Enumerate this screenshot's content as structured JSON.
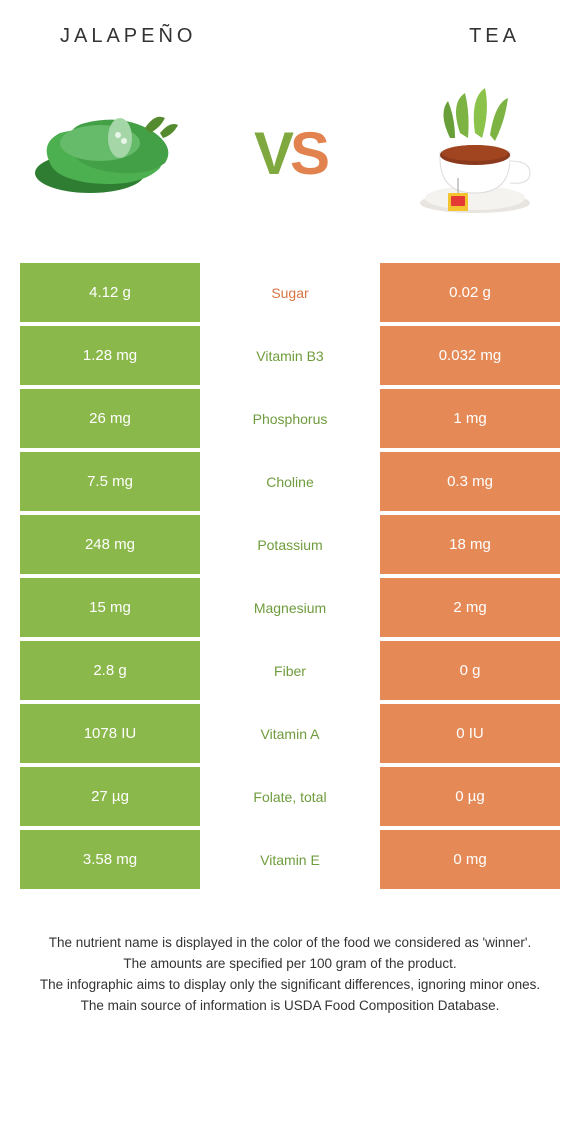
{
  "header": {
    "left": "JALAPEÑO",
    "right": "TEA"
  },
  "vs": {
    "v": "V",
    "s": "S"
  },
  "colors": {
    "green_bg": "#8bb84a",
    "orange_bg": "#e58a57",
    "green_text": "#6f9c3c",
    "orange_text": "#d97543"
  },
  "rows": [
    {
      "left": "4.12 g",
      "label": "Sugar",
      "right": "0.02 g",
      "winner": "orange"
    },
    {
      "left": "1.28 mg",
      "label": "Vitamin B3",
      "right": "0.032 mg",
      "winner": "green"
    },
    {
      "left": "26 mg",
      "label": "Phosphorus",
      "right": "1 mg",
      "winner": "green"
    },
    {
      "left": "7.5 mg",
      "label": "Choline",
      "right": "0.3 mg",
      "winner": "green"
    },
    {
      "left": "248 mg",
      "label": "Potassium",
      "right": "18 mg",
      "winner": "green"
    },
    {
      "left": "15 mg",
      "label": "Magnesium",
      "right": "2 mg",
      "winner": "green"
    },
    {
      "left": "2.8 g",
      "label": "Fiber",
      "right": "0 g",
      "winner": "green"
    },
    {
      "left": "1078 IU",
      "label": "Vitamin A",
      "right": "0 IU",
      "winner": "green"
    },
    {
      "left": "27 µg",
      "label": "Folate, total",
      "right": "0 µg",
      "winner": "green"
    },
    {
      "left": "3.58 mg",
      "label": "Vitamin E",
      "right": "0 mg",
      "winner": "green"
    }
  ],
  "footer": {
    "line1": "The nutrient name is displayed in the color of the food we considered as 'winner'.",
    "line2": "The amounts are specified per 100 gram of the product.",
    "line3": "The infographic aims to display only the significant differences, ignoring minor ones.",
    "line4": "The main source of information is USDA Food Composition Database."
  }
}
